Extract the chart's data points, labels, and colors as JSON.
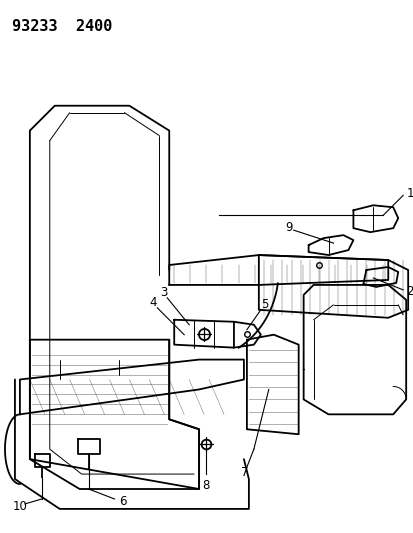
{
  "title_code": "93233  2400",
  "background_color": "#ffffff",
  "line_color": "#000000",
  "fig_width": 4.14,
  "fig_height": 5.33,
  "dpi": 100
}
